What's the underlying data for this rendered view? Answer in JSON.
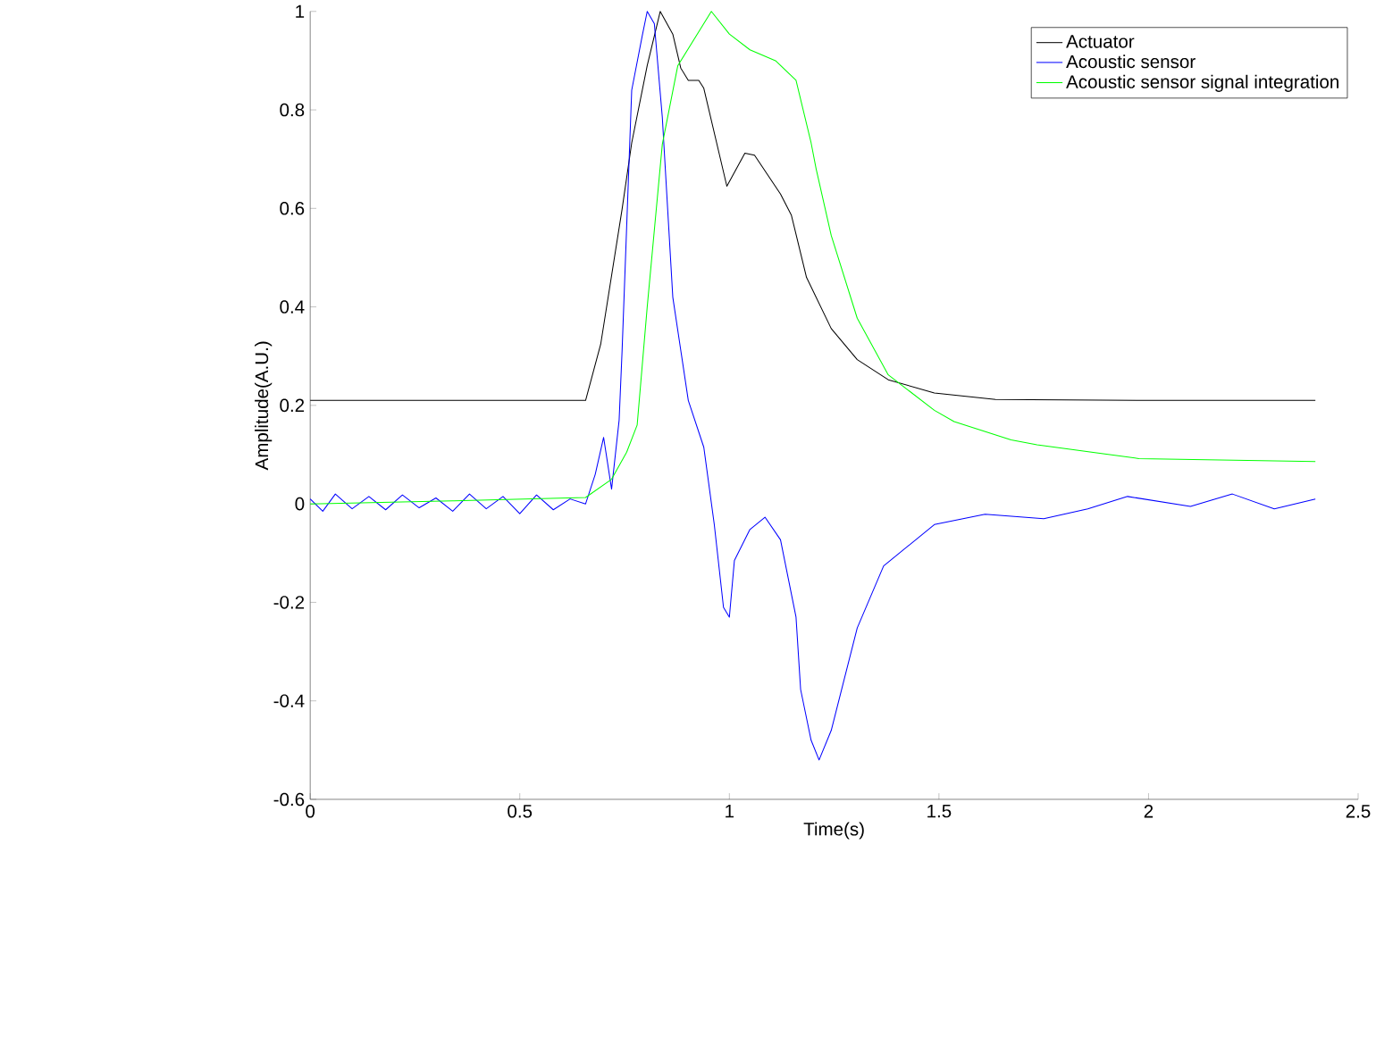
{
  "chart_data": {
    "type": "line",
    "xlabel": "Time(s)",
    "ylabel": "Amplitude(A.U.)",
    "xlim": [
      0,
      2.5
    ],
    "ylim": [
      -0.6,
      1
    ],
    "xticks": [
      0,
      0.5,
      1,
      1.5,
      2,
      2.5
    ],
    "yticks": [
      -0.6,
      -0.4,
      -0.2,
      0,
      0.2,
      0.4,
      0.6,
      0.8,
      1
    ],
    "legend": "top right",
    "series": [
      {
        "name": "Actuator",
        "color": "#000000",
        "x": [
          0,
          0.3,
          0.657,
          0.693,
          0.744,
          0.767,
          0.804,
          0.835,
          0.865,
          0.884,
          0.902,
          0.927,
          0.939,
          0.994,
          1.037,
          1.06,
          1.122,
          1.148,
          1.184,
          1.243,
          1.305,
          1.379,
          1.489,
          1.635,
          2.0,
          2.398
        ],
        "values": [
          0.21,
          0.21,
          0.21,
          0.324,
          0.598,
          0.733,
          0.89,
          1.0,
          0.954,
          0.885,
          0.86,
          0.86,
          0.844,
          0.645,
          0.712,
          0.708,
          0.629,
          0.586,
          0.46,
          0.356,
          0.293,
          0.252,
          0.225,
          0.212,
          0.21,
          0.21
        ]
      },
      {
        "name": "Acoustic sensor",
        "color": "#0000ff",
        "x": [
          0,
          0.03,
          0.06,
          0.1,
          0.14,
          0.18,
          0.22,
          0.26,
          0.3,
          0.34,
          0.38,
          0.42,
          0.46,
          0.5,
          0.54,
          0.58,
          0.62,
          0.657,
          0.68,
          0.7,
          0.719,
          0.737,
          0.744,
          0.767,
          0.792,
          0.804,
          0.821,
          0.84,
          0.865,
          0.902,
          0.939,
          0.964,
          0.986,
          1.0,
          1.012,
          1.049,
          1.085,
          1.122,
          1.159,
          1.17,
          1.195,
          1.214,
          1.243,
          1.305,
          1.368,
          1.489,
          1.61,
          1.75,
          1.855,
          1.95,
          2.1,
          2.2,
          2.3,
          2.398
        ],
        "values": [
          0.01,
          -0.015,
          0.02,
          -0.01,
          0.015,
          -0.012,
          0.018,
          -0.008,
          0.012,
          -0.015,
          0.02,
          -0.01,
          0.015,
          -0.02,
          0.018,
          -0.012,
          0.01,
          0.0,
          0.06,
          0.135,
          0.03,
          0.17,
          0.31,
          0.84,
          0.95,
          1.0,
          0.975,
          0.785,
          0.42,
          0.21,
          0.115,
          -0.042,
          -0.21,
          -0.23,
          -0.115,
          -0.052,
          -0.027,
          -0.073,
          -0.23,
          -0.377,
          -0.48,
          -0.52,
          -0.46,
          -0.252,
          -0.126,
          -0.042,
          -0.021,
          -0.03,
          -0.01,
          0.015,
          -0.005,
          0.02,
          -0.01,
          0.01
        ]
      },
      {
        "name": "Acoustic sensor signal integration",
        "color": "#00ff00",
        "x": [
          0,
          0.34,
          0.657,
          0.719,
          0.755,
          0.78,
          0.804,
          0.84,
          0.877,
          0.957,
          1.0,
          1.049,
          1.11,
          1.159,
          1.195,
          1.207,
          1.243,
          1.305,
          1.379,
          1.489,
          1.536,
          1.672,
          1.734,
          1.977,
          2.398
        ],
        "values": [
          0.0,
          0.006,
          0.013,
          0.05,
          0.105,
          0.16,
          0.4,
          0.73,
          0.89,
          1.0,
          0.954,
          0.922,
          0.9,
          0.86,
          0.733,
          0.68,
          0.545,
          0.377,
          0.262,
          0.19,
          0.167,
          0.13,
          0.12,
          0.092,
          0.086
        ]
      }
    ]
  }
}
